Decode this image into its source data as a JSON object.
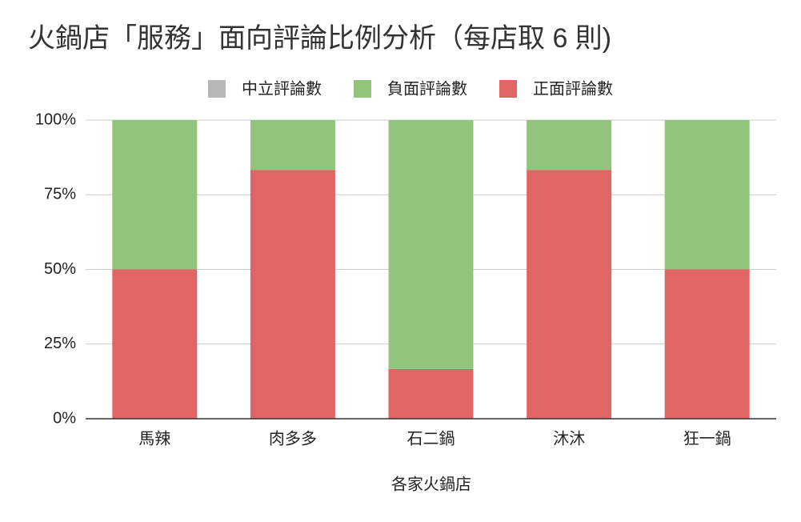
{
  "chart_data": {
    "type": "stacked_bar_percent",
    "title": "火鍋店「服務」面向評論比例分析（每店取 6 則)",
    "x_label": "各家火鍋店",
    "categories": [
      "馬辣",
      "肉多多",
      "石二鍋",
      "沐沐",
      "狂一鍋"
    ],
    "series": [
      {
        "name": "中立評論數",
        "color": "#b7b7b7",
        "values": [
          0,
          0,
          0,
          0,
          0
        ]
      },
      {
        "name": "負面評論數",
        "color": "#93c47d",
        "values": [
          50,
          16.67,
          83.33,
          16.67,
          50
        ]
      },
      {
        "name": "正面評論數",
        "color": "#e06666",
        "values": [
          50,
          83.33,
          16.67,
          83.33,
          50
        ]
      }
    ],
    "stack_order": "reverse",
    "ylim": [
      0,
      100
    ],
    "yticks": [
      {
        "value": 0,
        "label": "0%"
      },
      {
        "value": 25,
        "label": "25%"
      },
      {
        "value": 50,
        "label": "50%"
      },
      {
        "value": 75,
        "label": "75%"
      },
      {
        "value": 100,
        "label": "100%"
      }
    ],
    "grid": true,
    "legend": "top"
  }
}
